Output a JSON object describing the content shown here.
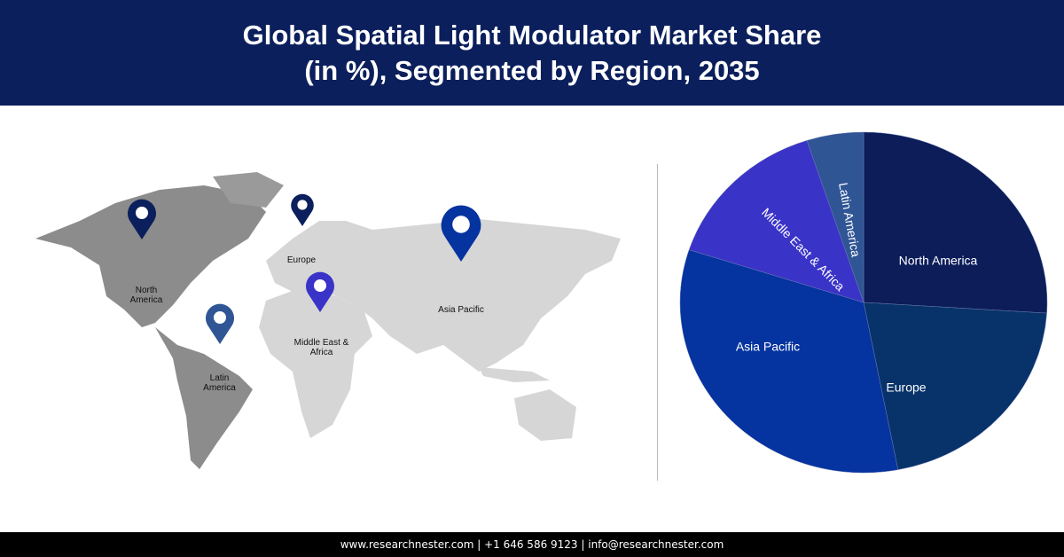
{
  "header": {
    "title_line1": "Global Spatial Light Modulator Market Share",
    "title_line2": "(in %), Segmented by Region, 2035"
  },
  "map": {
    "pins": [
      {
        "label": "North America",
        "color": "#0b1f5c"
      },
      {
        "label": "Europe",
        "color": "#0b1f5c"
      },
      {
        "label": "Asia Pacific",
        "color": "#0533a0"
      },
      {
        "label": "Middle East & Africa",
        "color": "#3a33c8"
      },
      {
        "label": "Latin America",
        "color": "#2f5595"
      }
    ]
  },
  "chart_data": {
    "type": "pie",
    "title": "Global Spatial Light Modulator Market Share (in %), Segmented by Region, 2035",
    "categories": [
      "North America",
      "Europe",
      "Asia Pacific",
      "Middle East & Africa",
      "Latin America"
    ],
    "values": [
      26,
      21,
      33,
      15,
      5
    ],
    "colors": [
      "#0c1d5a",
      "#08336a",
      "#0533a0",
      "#3a33c8",
      "#2f5595"
    ],
    "start": "top, clockwise"
  },
  "footer": {
    "text": "www.researchnester.com  | +1 646 586 9123 | info@researchnester.com"
  }
}
